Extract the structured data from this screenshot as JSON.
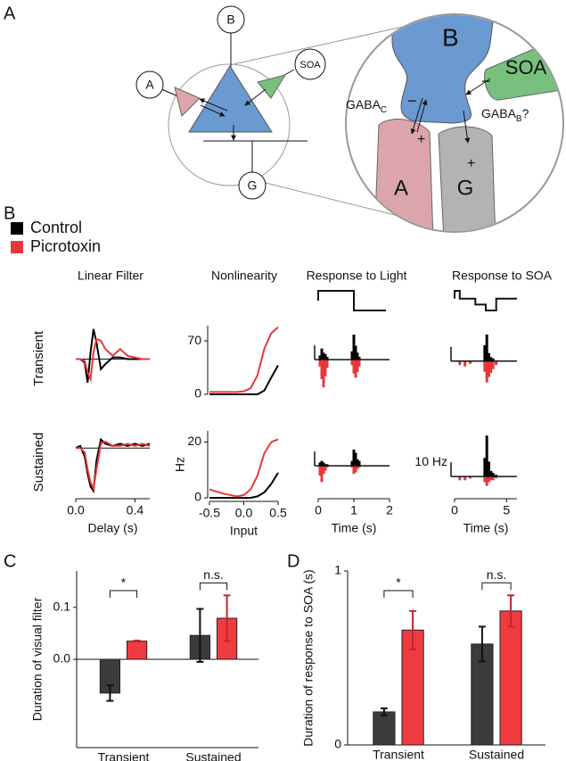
{
  "panel_labels": [
    "A",
    "B",
    "C",
    "D"
  ],
  "diagram": {
    "small_nodes": [
      "B",
      "A",
      "SOA",
      "G"
    ],
    "large_nodes": [
      "B",
      "SOA",
      "A",
      "G"
    ],
    "gaba_c": {
      "main": "GABA",
      "sub": "C"
    },
    "gaba_b": {
      "main": "GABA",
      "sub": "B",
      "suffix": "?"
    },
    "signs": [
      "−",
      "+",
      "−",
      "+"
    ]
  },
  "legend": {
    "series": [
      {
        "name": "Control",
        "color": "#000000"
      },
      {
        "name": "Picrotoxin",
        "color": "#e8373c"
      }
    ]
  },
  "panel_b": {
    "columns": [
      "Linear Filter",
      "Nonlinearity",
      "Response to Light",
      "Response to SOA"
    ],
    "rows": [
      "Transient",
      "Sustained"
    ]
  },
  "chart_data": [
    {
      "type": "line",
      "x": [
        0,
        0.03,
        0.06,
        0.08,
        0.1,
        0.12,
        0.14,
        0.17,
        0.2,
        0.25,
        0.3,
        0.35,
        0.4,
        0.45,
        0.5
      ],
      "xlim": [
        0,
        0.5
      ],
      "ylim": [
        -1,
        1
      ],
      "zero_line": true,
      "series": [
        {
          "color": "#000000",
          "values": [
            0,
            0,
            -0.1,
            -0.7,
            0.2,
            0.9,
            0.5,
            -0.3,
            -0.15,
            0.05,
            0.05,
            0,
            0,
            0,
            0
          ]
        },
        {
          "color": "#e8373c",
          "values": [
            0,
            0,
            -0.05,
            -0.4,
            -0.6,
            0.2,
            0.6,
            0.55,
            0.3,
            0.1,
            0.3,
            0.1,
            0.05,
            0,
            0
          ]
        }
      ]
    },
    {
      "type": "line",
      "x": [
        0,
        0.03,
        0.06,
        0.08,
        0.1,
        0.12,
        0.14,
        0.17,
        0.2,
        0.25,
        0.3,
        0.35,
        0.4,
        0.45,
        0.5
      ],
      "xlim": [
        0,
        0.5
      ],
      "ylim": [
        -1.1,
        0.4
      ],
      "zero_line": true,
      "xticks": [
        {
          "value": 0,
          "label": "0.0"
        },
        0.4
      ],
      "x_label": "Delay (s)",
      "series": [
        {
          "color": "#000000",
          "values": [
            0,
            0.05,
            -0.2,
            -0.6,
            -0.9,
            -1,
            -0.3,
            0.2,
            0.1,
            0.05,
            0.1,
            0.05,
            0.1,
            0.05,
            0.1
          ]
        },
        {
          "color": "#e8373c",
          "values": [
            0,
            0,
            -0.1,
            -0.5,
            -0.8,
            -0.95,
            -0.5,
            0.1,
            0.15,
            0.05,
            0.05,
            0.1,
            0.05,
            0.1,
            0.05
          ]
        }
      ]
    },
    {
      "type": "line",
      "x": [
        -0.5,
        -0.3,
        -0.1,
        0,
        0.1,
        0.2,
        0.3,
        0.4,
        0.5
      ],
      "xlim": [
        -0.5,
        0.5
      ],
      "ylim": [
        0,
        90
      ],
      "yticks": [
        0,
        70
      ],
      "series": [
        {
          "color": "#000000",
          "values": [
            0,
            0,
            0,
            0,
            0,
            0,
            5,
            22,
            38
          ]
        },
        {
          "color": "#e8373c",
          "values": [
            3,
            3,
            3,
            4,
            8,
            25,
            60,
            80,
            88
          ]
        }
      ]
    },
    {
      "type": "line",
      "x": [
        -0.5,
        -0.3,
        -0.1,
        0,
        0.1,
        0.2,
        0.3,
        0.4,
        0.5
      ],
      "xlim": [
        -0.5,
        0.5
      ],
      "ylim": [
        0,
        24
      ],
      "yticks": [
        0,
        20
      ],
      "xticks": [
        -0.5,
        {
          "value": 0,
          "label": "0.0"
        },
        0.5
      ],
      "x_label": "Input",
      "y_label": "Hz",
      "series": [
        {
          "color": "#000000",
          "values": [
            0,
            0,
            0,
            0,
            0,
            0.5,
            2,
            5,
            9
          ]
        },
        {
          "color": "#e8373c",
          "values": [
            3,
            1.5,
            0.5,
            1,
            3,
            8,
            16,
            20,
            21
          ]
        }
      ]
    },
    {
      "type": "response",
      "x": [
        0.05,
        0.1,
        0.15,
        0.2,
        0.25,
        0.95,
        1.0,
        1.05,
        1.1,
        1.15
      ],
      "xlim": [
        0,
        2
      ],
      "ylim": [
        -25,
        20
      ],
      "stimulus": {
        "x": [
          0,
          0,
          1,
          1,
          1.9
        ],
        "values": [
          0.5,
          1,
          1,
          0,
          0
        ]
      },
      "series": [
        {
          "color": "#000000",
          "values": [
            3,
            8,
            5,
            4,
            2,
            6,
            18,
            10,
            5,
            2
          ]
        },
        {
          "color": "#e8373c",
          "values": [
            -5,
            -14,
            -20,
            -12,
            -6,
            -4,
            -10,
            -13,
            -9,
            -5
          ]
        }
      ]
    },
    {
      "type": "response",
      "x": [
        0.05,
        0.1,
        0.15,
        0.2,
        0.25,
        0.95,
        1.0,
        1.05,
        1.1,
        1.15
      ],
      "xlim": [
        0,
        2
      ],
      "ylim": [
        -18,
        22
      ],
      "xticks": [
        0,
        1,
        2
      ],
      "x_label": "Time (s)",
      "series": [
        {
          "color": "#000000",
          "values": [
            2,
            3,
            2,
            1,
            1,
            3,
            10,
            8,
            4,
            3
          ]
        },
        {
          "color": "#e8373c",
          "values": [
            -6,
            -10,
            -5,
            -3,
            -1,
            -1,
            -5,
            -4,
            -2,
            -1
          ]
        }
      ]
    },
    {
      "type": "response",
      "x": [
        0.5,
        1,
        1.5,
        2.9,
        3.1,
        3.3,
        3.5,
        3.7,
        4
      ],
      "xlim": [
        0,
        6
      ],
      "ylim": [
        -25,
        22
      ],
      "stimulus": {
        "x": [
          0,
          0,
          0.5,
          0.5,
          2,
          2,
          3,
          3,
          4,
          4,
          6
        ],
        "values": [
          0.6,
          1,
          1,
          0.6,
          0.6,
          0.3,
          0.3,
          0,
          0,
          0.6,
          0.6
        ]
      },
      "series": [
        {
          "color": "#000000",
          "values": [
            0,
            0,
            0,
            12,
            20,
            6,
            3,
            2,
            0
          ]
        },
        {
          "color": "#e8373c",
          "values": [
            -3,
            -4,
            -2,
            -8,
            -16,
            -12,
            -9,
            -6,
            -3
          ]
        }
      ]
    },
    {
      "type": "response",
      "x": [
        0.5,
        1,
        1.5,
        2.9,
        3.1,
        3.3,
        3.5,
        3.7,
        4
      ],
      "xlim": [
        0,
        6
      ],
      "ylim": [
        -10,
        25
      ],
      "xticks": [
        0,
        5
      ],
      "x_label": "Time (s)",
      "scale_label": "10 Hz",
      "series": [
        {
          "color": "#000000",
          "values": [
            0,
            0,
            0,
            10,
            22,
            8,
            3,
            2,
            1
          ]
        },
        {
          "color": "#e8373c",
          "values": [
            -2,
            -2,
            -1,
            -3,
            -5,
            -3,
            -2,
            -2,
            -1
          ]
        }
      ]
    },
    {
      "type": "bar",
      "categories": [
        "Transient",
        "Sustained"
      ],
      "ylim": [
        -0.17,
        0.17
      ],
      "yticks": [
        {
          "value": 0,
          "label": "0.0"
        },
        0.1
      ],
      "y_label": "Duration of visual filter",
      "significance": [
        "*",
        "n.s."
      ],
      "series": [
        {
          "color": "#3c3c3c",
          "values": [
            -0.065,
            0.046
          ],
          "errors": [
            0.015,
            0.051
          ]
        },
        {
          "color": "#ef3b3f",
          "values": [
            0.035,
            0.079
          ],
          "errors": [
            0.001,
            0.044
          ]
        }
      ]
    },
    {
      "type": "bar",
      "categories": [
        "Transient",
        "Sustained"
      ],
      "ylim": [
        0,
        1
      ],
      "yticks": [
        0,
        1
      ],
      "y_label": "Duration of  response to SOA (s)",
      "significance": [
        "*",
        "n.s."
      ],
      "series": [
        {
          "color": "#3c3c3c",
          "values": [
            0.19,
            0.58
          ],
          "errors": [
            0.02,
            0.1
          ]
        },
        {
          "color": "#ef3b3f",
          "values": [
            0.66,
            0.77
          ],
          "errors": [
            0.11,
            0.09
          ]
        }
      ]
    }
  ]
}
